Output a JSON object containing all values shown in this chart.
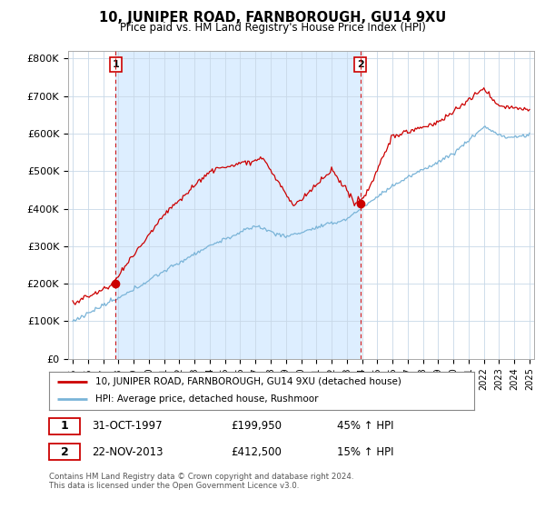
{
  "title": "10, JUNIPER ROAD, FARNBOROUGH, GU14 9XU",
  "subtitle": "Price paid vs. HM Land Registry's House Price Index (HPI)",
  "legend_line1": "10, JUNIPER ROAD, FARNBOROUGH, GU14 9XU (detached house)",
  "legend_line2": "HPI: Average price, detached house, Rushmoor",
  "footnote": "Contains HM Land Registry data © Crown copyright and database right 2024.\nThis data is licensed under the Open Government Licence v3.0.",
  "transaction1_date": "31-OCT-1997",
  "transaction1_price": "£199,950",
  "transaction1_hpi": "45% ↑ HPI",
  "transaction1_year": 1997.83,
  "transaction1_value": 199950,
  "transaction2_date": "22-NOV-2013",
  "transaction2_price": "£412,500",
  "transaction2_hpi": "15% ↑ HPI",
  "transaction2_year": 2013.89,
  "transaction2_value": 412500,
  "hpi_color": "#7ab4d8",
  "price_color": "#cc0000",
  "shade_color": "#ddeeff",
  "ylim": [
    0,
    820000
  ],
  "yticks": [
    0,
    100000,
    200000,
    300000,
    400000,
    500000,
    600000,
    700000,
    800000
  ],
  "ytick_labels": [
    "£0",
    "£100K",
    "£200K",
    "£300K",
    "£400K",
    "£500K",
    "£600K",
    "£700K",
    "£800K"
  ],
  "xlim_start": 1994.7,
  "xlim_end": 2025.3,
  "background_color": "#ffffff",
  "grid_color": "#c8d8e8"
}
